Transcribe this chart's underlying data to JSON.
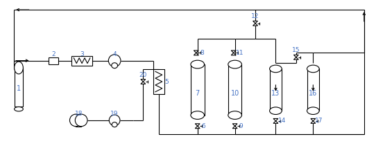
{
  "bg_color": "#ffffff",
  "line_color": "#000000",
  "label_color": "#4472c4",
  "figsize": [
    5.42,
    2.4
  ],
  "dpi": 100
}
